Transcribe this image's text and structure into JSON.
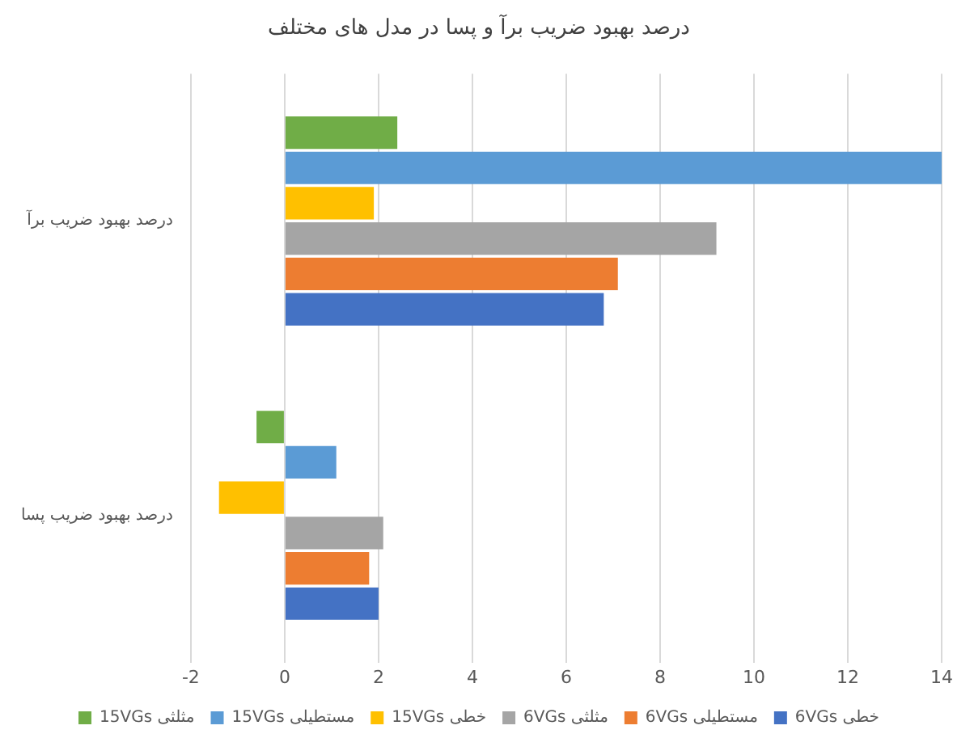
{
  "chart_data": {
    "type": "bar",
    "orientation": "horizontal",
    "title": "درصد بهبود ضریب برآ و پسا در مدل های مختلف",
    "categories": [
      "درصد بهبود ضریب برآ",
      "درصد بهبود ضریب پسا"
    ],
    "series": [
      {
        "name": "15VGs مثلثی",
        "color": "#70ad47",
        "values": [
          2.4,
          -0.6
        ]
      },
      {
        "name": "15VGs مستطیلی",
        "color": "#5b9bd5",
        "values": [
          14.0,
          1.1
        ]
      },
      {
        "name": "15VGs خطی",
        "color": "#ffc000",
        "values": [
          1.9,
          -1.4
        ]
      },
      {
        "name": "6VGs مثلثی",
        "color": "#a5a5a5",
        "values": [
          9.2,
          2.1
        ]
      },
      {
        "name": "6VGs مستطیلی",
        "color": "#ed7d31",
        "values": [
          7.1,
          1.8
        ]
      },
      {
        "name": "6VGs خطی",
        "color": "#4472c4",
        "values": [
          6.8,
          2.0
        ]
      }
    ],
    "xlim": [
      -2,
      14
    ],
    "xticks": [
      -2,
      0,
      2,
      4,
      6,
      8,
      10,
      12,
      14
    ],
    "grid": "x",
    "legend": "bottom"
  }
}
